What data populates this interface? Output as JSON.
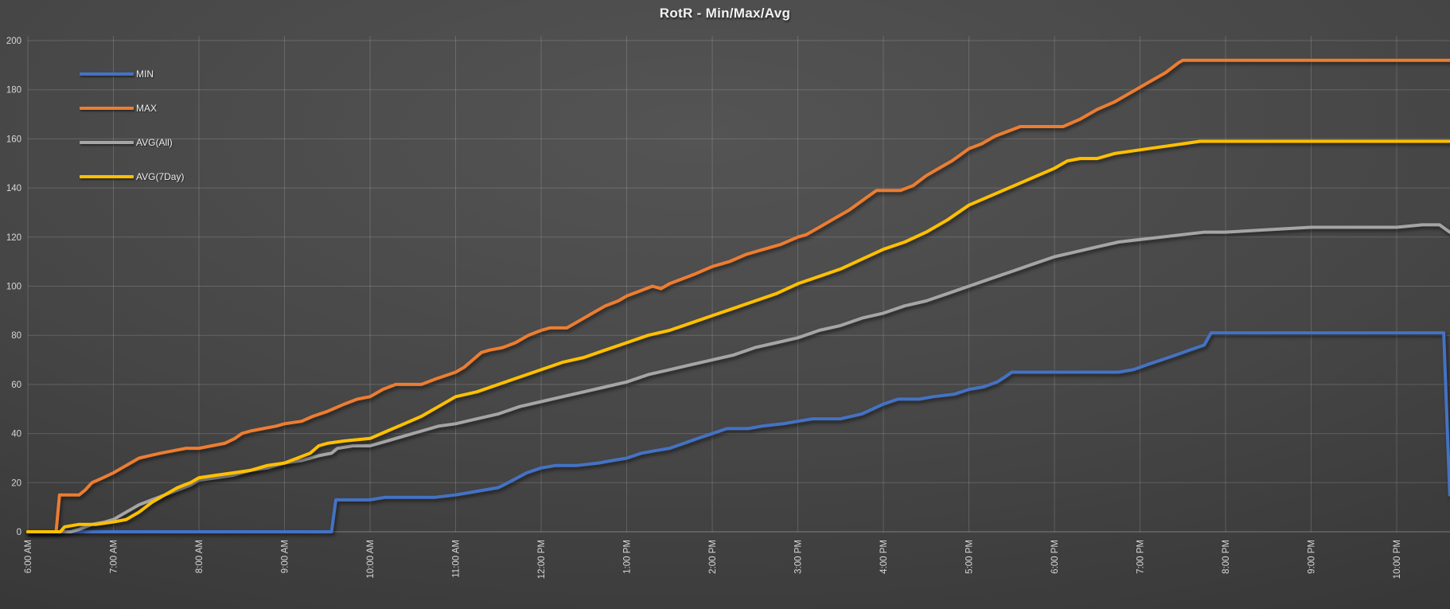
{
  "chart_data": {
    "type": "line",
    "title": "RotR - Min/Max/Avg",
    "xlabel": "",
    "ylabel": "",
    "grid": true,
    "legend_position": "top-left-inside",
    "y_axis": {
      "min": 0,
      "max": 200,
      "step": 20,
      "ticks": [
        0,
        20,
        40,
        60,
        80,
        100,
        120,
        140,
        160,
        180,
        200
      ]
    },
    "x_axis": {
      "unit": "time-of-day",
      "tick_hours": [
        6,
        7,
        8,
        9,
        10,
        11,
        12,
        13,
        14,
        15,
        16,
        17,
        18,
        19,
        20,
        21,
        22
      ],
      "tick_labels": [
        "6:00 AM",
        "7:00 AM",
        "8:00 AM",
        "9:00 AM",
        "10:00 AM",
        "11:00 AM",
        "12:00 PM",
        "1:00 PM",
        "2:00 PM",
        "3:00 PM",
        "4:00 PM",
        "5:00 PM",
        "6:00 PM",
        "7:00 PM",
        "8:00 PM",
        "9:00 PM",
        "10:00 PM"
      ],
      "range_hours": [
        6.0,
        22.62
      ]
    },
    "series": [
      {
        "name": "MIN",
        "color": "#4472C4",
        "points": [
          [
            6,
            0
          ],
          [
            9.55,
            0
          ],
          [
            9.6,
            13
          ],
          [
            9.75,
            13
          ],
          [
            10,
            13
          ],
          [
            10.17,
            14
          ],
          [
            10.5,
            14
          ],
          [
            10.75,
            14
          ],
          [
            11,
            15
          ],
          [
            11.17,
            16
          ],
          [
            11.33,
            17
          ],
          [
            11.5,
            18
          ],
          [
            11.67,
            21
          ],
          [
            11.83,
            24
          ],
          [
            12,
            26
          ],
          [
            12.17,
            27
          ],
          [
            12.42,
            27
          ],
          [
            12.67,
            28
          ],
          [
            12.83,
            29
          ],
          [
            13,
            30
          ],
          [
            13.17,
            32
          ],
          [
            13.33,
            33
          ],
          [
            13.5,
            34
          ],
          [
            13.67,
            36
          ],
          [
            13.83,
            38
          ],
          [
            14,
            40
          ],
          [
            14.17,
            42
          ],
          [
            14.42,
            42
          ],
          [
            14.58,
            43
          ],
          [
            14.83,
            44
          ],
          [
            15,
            45
          ],
          [
            15.17,
            46
          ],
          [
            15.5,
            46
          ],
          [
            15.75,
            48
          ],
          [
            16,
            52
          ],
          [
            16.17,
            54
          ],
          [
            16.42,
            54
          ],
          [
            16.58,
            55
          ],
          [
            16.83,
            56
          ],
          [
            17,
            58
          ],
          [
            17.17,
            59
          ],
          [
            17.33,
            61
          ],
          [
            17.42,
            63
          ],
          [
            17.5,
            65
          ],
          [
            17.75,
            65
          ],
          [
            18.5,
            65
          ],
          [
            18.75,
            65
          ],
          [
            18.92,
            66
          ],
          [
            19.08,
            68
          ],
          [
            19.25,
            70
          ],
          [
            19.42,
            72
          ],
          [
            19.58,
            74
          ],
          [
            19.75,
            76
          ],
          [
            19.83,
            81
          ],
          [
            20,
            81
          ],
          [
            21,
            81
          ],
          [
            22,
            81
          ],
          [
            22.55,
            81
          ],
          [
            22.62,
            15
          ]
        ]
      },
      {
        "name": "MAX",
        "color": "#ED7D31",
        "points": [
          [
            6,
            0
          ],
          [
            6.33,
            0
          ],
          [
            6.37,
            15
          ],
          [
            6.6,
            15
          ],
          [
            6.67,
            17
          ],
          [
            6.75,
            20
          ],
          [
            6.88,
            22
          ],
          [
            7,
            24
          ],
          [
            7.1,
            26
          ],
          [
            7.2,
            28
          ],
          [
            7.3,
            30
          ],
          [
            7.42,
            31
          ],
          [
            7.55,
            32
          ],
          [
            7.7,
            33
          ],
          [
            7.85,
            34
          ],
          [
            8,
            34
          ],
          [
            8.15,
            35
          ],
          [
            8.3,
            36
          ],
          [
            8.42,
            38
          ],
          [
            8.5,
            40
          ],
          [
            8.6,
            41
          ],
          [
            8.75,
            42
          ],
          [
            8.9,
            43
          ],
          [
            9,
            44
          ],
          [
            9.2,
            45
          ],
          [
            9.33,
            47
          ],
          [
            9.5,
            49
          ],
          [
            9.7,
            52
          ],
          [
            9.85,
            54
          ],
          [
            10,
            55
          ],
          [
            10.15,
            58
          ],
          [
            10.3,
            60
          ],
          [
            10.6,
            60
          ],
          [
            10.75,
            62
          ],
          [
            11,
            65
          ],
          [
            11.1,
            67
          ],
          [
            11.2,
            70
          ],
          [
            11.3,
            73
          ],
          [
            11.4,
            74
          ],
          [
            11.55,
            75
          ],
          [
            11.7,
            77
          ],
          [
            11.85,
            80
          ],
          [
            12,
            82
          ],
          [
            12.1,
            83
          ],
          [
            12.3,
            83
          ],
          [
            12.45,
            86
          ],
          [
            12.6,
            89
          ],
          [
            12.75,
            92
          ],
          [
            12.9,
            94
          ],
          [
            13,
            96
          ],
          [
            13.15,
            98
          ],
          [
            13.3,
            100
          ],
          [
            13.4,
            99
          ],
          [
            13.5,
            101
          ],
          [
            13.65,
            103
          ],
          [
            13.8,
            105
          ],
          [
            14,
            108
          ],
          [
            14.2,
            110
          ],
          [
            14.4,
            113
          ],
          [
            14.6,
            115
          ],
          [
            14.8,
            117
          ],
          [
            15,
            120
          ],
          [
            15.1,
            121
          ],
          [
            15.25,
            124
          ],
          [
            15.4,
            127
          ],
          [
            15.6,
            131
          ],
          [
            15.8,
            136
          ],
          [
            15.92,
            139
          ],
          [
            16.2,
            139
          ],
          [
            16.35,
            141
          ],
          [
            16.5,
            145
          ],
          [
            16.65,
            148
          ],
          [
            16.8,
            151
          ],
          [
            17,
            156
          ],
          [
            17.15,
            158
          ],
          [
            17.3,
            161
          ],
          [
            17.45,
            163
          ],
          [
            17.6,
            165
          ],
          [
            18.1,
            165
          ],
          [
            18.3,
            168
          ],
          [
            18.5,
            172
          ],
          [
            18.7,
            175
          ],
          [
            18.9,
            179
          ],
          [
            19.1,
            183
          ],
          [
            19.3,
            187
          ],
          [
            19.45,
            191
          ],
          [
            19.5,
            192
          ],
          [
            20,
            192
          ],
          [
            21,
            192
          ],
          [
            22,
            192
          ],
          [
            22.62,
            192
          ]
        ]
      },
      {
        "name": "AVG(All)",
        "color": "#A5A5A5",
        "points": [
          [
            6,
            0
          ],
          [
            6.5,
            0
          ],
          [
            6.6,
            1
          ],
          [
            6.75,
            3
          ],
          [
            6.9,
            4
          ],
          [
            7,
            5
          ],
          [
            7.15,
            8
          ],
          [
            7.3,
            11
          ],
          [
            7.45,
            13
          ],
          [
            7.6,
            15
          ],
          [
            7.75,
            17
          ],
          [
            7.9,
            19
          ],
          [
            8,
            21
          ],
          [
            8.2,
            22
          ],
          [
            8.4,
            23
          ],
          [
            8.6,
            25
          ],
          [
            8.8,
            26
          ],
          [
            9,
            28
          ],
          [
            9.2,
            29
          ],
          [
            9.4,
            31
          ],
          [
            9.55,
            32
          ],
          [
            9.62,
            34
          ],
          [
            9.8,
            35
          ],
          [
            10,
            35
          ],
          [
            10.2,
            37
          ],
          [
            10.4,
            39
          ],
          [
            10.6,
            41
          ],
          [
            10.8,
            43
          ],
          [
            11,
            44
          ],
          [
            11.25,
            46
          ],
          [
            11.5,
            48
          ],
          [
            11.75,
            51
          ],
          [
            12,
            53
          ],
          [
            12.25,
            55
          ],
          [
            12.5,
            57
          ],
          [
            12.75,
            59
          ],
          [
            13,
            61
          ],
          [
            13.25,
            64
          ],
          [
            13.5,
            66
          ],
          [
            13.75,
            68
          ],
          [
            14,
            70
          ],
          [
            14.25,
            72
          ],
          [
            14.5,
            75
          ],
          [
            14.75,
            77
          ],
          [
            15,
            79
          ],
          [
            15.25,
            82
          ],
          [
            15.5,
            84
          ],
          [
            15.75,
            87
          ],
          [
            16,
            89
          ],
          [
            16.25,
            92
          ],
          [
            16.5,
            94
          ],
          [
            16.75,
            97
          ],
          [
            17,
            100
          ],
          [
            17.25,
            103
          ],
          [
            17.5,
            106
          ],
          [
            17.75,
            109
          ],
          [
            18,
            112
          ],
          [
            18.25,
            114
          ],
          [
            18.5,
            116
          ],
          [
            18.75,
            118
          ],
          [
            19,
            119
          ],
          [
            19.25,
            120
          ],
          [
            19.5,
            121
          ],
          [
            19.75,
            122
          ],
          [
            20,
            122
          ],
          [
            20.5,
            123
          ],
          [
            21,
            124
          ],
          [
            21.5,
            124
          ],
          [
            22,
            124
          ],
          [
            22.3,
            125
          ],
          [
            22.5,
            125
          ],
          [
            22.62,
            122
          ]
        ]
      },
      {
        "name": "AVG(7Day)",
        "color": "#FFC000",
        "points": [
          [
            6,
            0
          ],
          [
            6.38,
            0
          ],
          [
            6.43,
            2
          ],
          [
            6.6,
            3
          ],
          [
            6.8,
            3
          ],
          [
            7,
            4
          ],
          [
            7.15,
            5
          ],
          [
            7.3,
            8
          ],
          [
            7.45,
            12
          ],
          [
            7.6,
            15
          ],
          [
            7.75,
            18
          ],
          [
            7.9,
            20
          ],
          [
            8,
            22
          ],
          [
            8.2,
            23
          ],
          [
            8.4,
            24
          ],
          [
            8.6,
            25
          ],
          [
            8.8,
            27
          ],
          [
            9,
            28
          ],
          [
            9.15,
            30
          ],
          [
            9.3,
            32
          ],
          [
            9.4,
            35
          ],
          [
            9.5,
            36
          ],
          [
            9.7,
            37
          ],
          [
            10,
            38
          ],
          [
            10.2,
            41
          ],
          [
            10.4,
            44
          ],
          [
            10.6,
            47
          ],
          [
            10.8,
            51
          ],
          [
            11,
            55
          ],
          [
            11.25,
            57
          ],
          [
            11.5,
            60
          ],
          [
            11.75,
            63
          ],
          [
            12,
            66
          ],
          [
            12.25,
            69
          ],
          [
            12.5,
            71
          ],
          [
            12.75,
            74
          ],
          [
            13,
            77
          ],
          [
            13.25,
            80
          ],
          [
            13.5,
            82
          ],
          [
            13.75,
            85
          ],
          [
            14,
            88
          ],
          [
            14.25,
            91
          ],
          [
            14.5,
            94
          ],
          [
            14.75,
            97
          ],
          [
            15,
            101
          ],
          [
            15.25,
            104
          ],
          [
            15.5,
            107
          ],
          [
            15.75,
            111
          ],
          [
            16,
            115
          ],
          [
            16.25,
            118
          ],
          [
            16.5,
            122
          ],
          [
            16.75,
            127
          ],
          [
            17,
            133
          ],
          [
            17.2,
            136
          ],
          [
            17.4,
            139
          ],
          [
            17.6,
            142
          ],
          [
            17.8,
            145
          ],
          [
            18,
            148
          ],
          [
            18.15,
            151
          ],
          [
            18.3,
            152
          ],
          [
            18.5,
            152
          ],
          [
            18.7,
            154
          ],
          [
            18.9,
            155
          ],
          [
            19.1,
            156
          ],
          [
            19.3,
            157
          ],
          [
            19.5,
            158
          ],
          [
            19.7,
            159
          ],
          [
            19.9,
            159
          ],
          [
            20.5,
            159
          ],
          [
            21,
            159
          ],
          [
            22,
            159
          ],
          [
            22.62,
            159
          ]
        ]
      }
    ]
  }
}
